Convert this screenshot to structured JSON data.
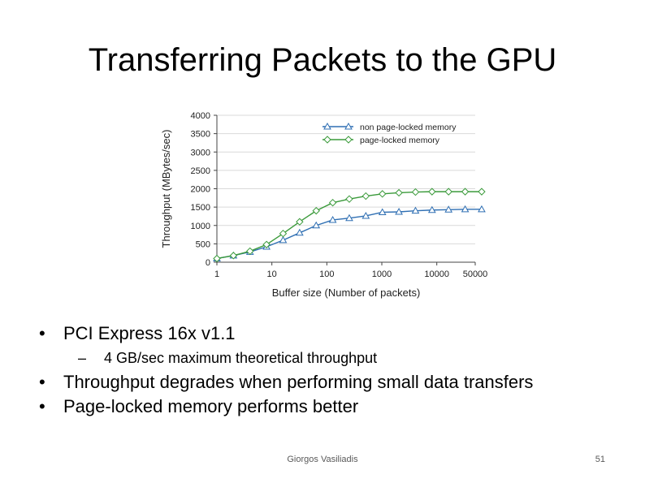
{
  "slide": {
    "title": "Transferring Packets to the GPU",
    "bullets": [
      "PCI Express 16x  v1.1",
      "4 GB/sec maximum theoretical throughput",
      "Throughput degrades when performing small data transfers",
      "Page-locked memory performs better"
    ],
    "author": "Giorgos Vasiliadis",
    "page_number": "51"
  },
  "chart_data": {
    "type": "line",
    "xlabel": "Buffer size (Number of packets)",
    "ylabel": "Throughput (MBytes/sec)",
    "x_scale": "log",
    "x_ticks": [
      1,
      10,
      100,
      1000,
      10000,
      50000
    ],
    "x_tick_labels": [
      "1",
      "10",
      "100",
      "1000",
      "10000",
      "50000"
    ],
    "ylim": [
      0,
      4000
    ],
    "y_ticks": [
      0,
      500,
      1000,
      1500,
      2000,
      2500,
      3000,
      3500,
      4000
    ],
    "y_tick_labels": [
      "0",
      "500",
      "1000",
      "1500",
      "2000",
      "2500",
      "3000",
      "3500",
      "4000"
    ],
    "grid": true,
    "legend_position": "top-right",
    "series": [
      {
        "name": "non page-locked memory",
        "marker": "triangle",
        "color": "#2f6fb3",
        "x": [
          1,
          2,
          4,
          8,
          16,
          32,
          64,
          128,
          256,
          512,
          1024,
          2048,
          4096,
          8192,
          16384,
          32768,
          65536
        ],
        "y": [
          100,
          180,
          280,
          420,
          600,
          800,
          1000,
          1150,
          1200,
          1260,
          1360,
          1370,
          1400,
          1420,
          1430,
          1440,
          1440
        ]
      },
      {
        "name": "page-locked memory",
        "marker": "diamond",
        "color": "#3a9a3a",
        "x": [
          1,
          2,
          4,
          8,
          16,
          32,
          64,
          128,
          256,
          512,
          1024,
          2048,
          4096,
          8192,
          16384,
          32768,
          65536
        ],
        "y": [
          100,
          180,
          300,
          480,
          780,
          1100,
          1400,
          1620,
          1720,
          1800,
          1860,
          1890,
          1910,
          1920,
          1920,
          1920,
          1920
        ]
      }
    ]
  }
}
